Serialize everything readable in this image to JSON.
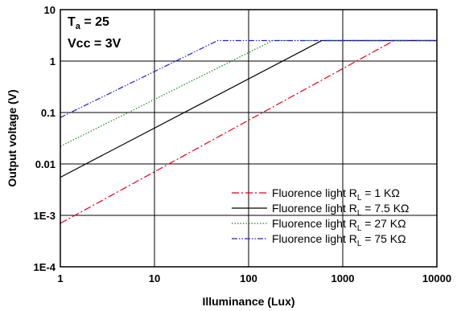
{
  "chart_data": {
    "type": "line",
    "xlabel": "Illuminance (Lux)",
    "ylabel": "Output voltage (V)",
    "xscale": "log",
    "yscale": "log",
    "xlim": [
      1,
      10000
    ],
    "ylim": [
      0.0001,
      10
    ],
    "grid": true,
    "legend_placement": "lower-right",
    "x_ticks": [
      "1",
      "10",
      "100",
      "1000",
      "10000"
    ],
    "y_ticks": [
      "1E-4",
      "1E-3",
      "0.01",
      "0.1",
      "1",
      "10"
    ],
    "annotation": {
      "line1_main": "T",
      "line1_sub": "a",
      "line1_rest": " = 25",
      "line2": "Vcc = 3V"
    },
    "series": [
      {
        "legend_prefix": "Fluorence light R",
        "legend_sub": "L",
        "legend_suffix": " = 1 KΩ",
        "color": "#e8001c",
        "dash": "9,3,2,3",
        "points": [
          [
            1,
            0.0007
          ],
          [
            3500,
            2.5
          ],
          [
            10000,
            2.5
          ]
        ]
      },
      {
        "legend_prefix": "Fluorence light R",
        "legend_sub": "L",
        "legend_suffix": " = 7.5 KΩ",
        "color": "#000000",
        "dash": "",
        "points": [
          [
            1,
            0.0055
          ],
          [
            600,
            2.5
          ],
          [
            10000,
            2.5
          ]
        ]
      },
      {
        "legend_prefix": "Fluorence light R",
        "legend_sub": "L",
        "legend_suffix": " = 27 KΩ",
        "color": "#109010",
        "dash": "1.5,2",
        "points": [
          [
            1,
            0.022
          ],
          [
            180,
            2.5
          ],
          [
            10000,
            2.5
          ]
        ]
      },
      {
        "legend_prefix": "Fluorence light R",
        "legend_sub": "L",
        "legend_suffix": " = 75 KΩ",
        "color": "#2020d0",
        "dash": "7,2,1.5,2,1.5,2",
        "points": [
          [
            1,
            0.08
          ],
          [
            47,
            2.5
          ],
          [
            10000,
            2.5
          ]
        ]
      }
    ]
  }
}
